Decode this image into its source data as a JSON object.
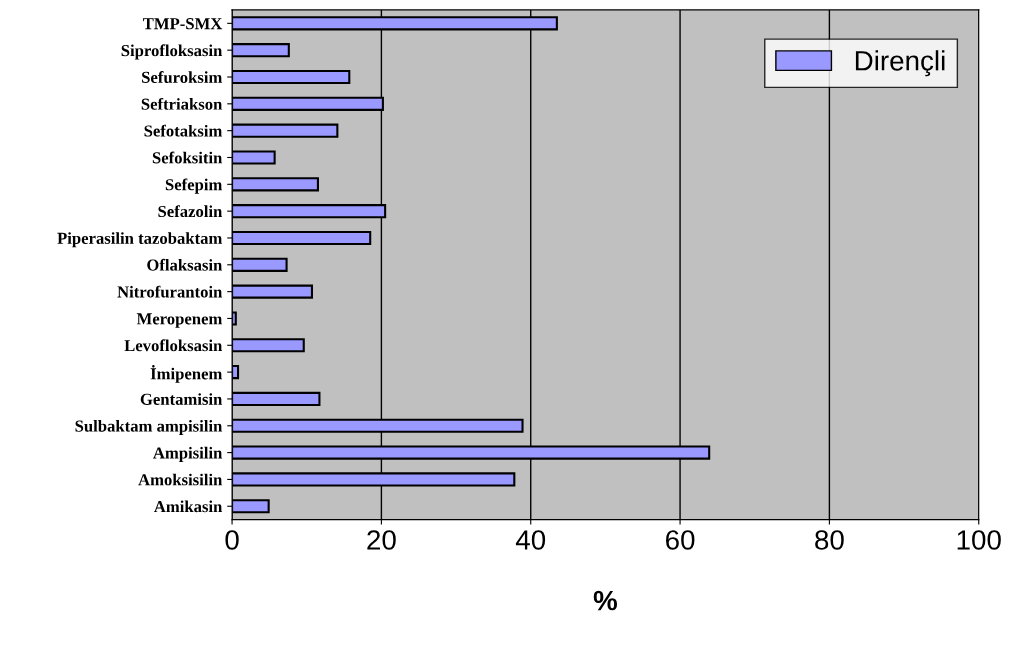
{
  "chart_data": {
    "type": "bar",
    "orientation": "horizontal",
    "xlabel": "%",
    "categories": [
      "TMP-SMX",
      "Siprofloksasin",
      "Sefuroksim",
      "Seftriakson",
      "Sefotaksim",
      "Sefoksitin",
      "Sefepim",
      "Sefazolin",
      "Piperasilin tazobaktam",
      "Oflaksasin",
      "Nitrofurantoin",
      "Meropenem",
      "Levofloksasin",
      "İmipenem",
      "Gentamisin",
      "Sulbaktam ampisilin",
      "Ampisilin",
      "Amoksisilin",
      "Amikasin"
    ],
    "series": [
      {
        "name": "Dirençli",
        "color": "#9999ff",
        "values": [
          43.5,
          7.6,
          15.7,
          20.2,
          14.1,
          5.7,
          11.5,
          20.5,
          18.5,
          7.3,
          10.7,
          0.5,
          9.6,
          0.8,
          11.7,
          38.9,
          63.9,
          37.8,
          4.9
        ]
      }
    ],
    "xlim": [
      0,
      100
    ],
    "xticks": [
      0,
      20,
      40,
      60,
      80,
      100
    ],
    "grid": "x",
    "legend": "top right"
  }
}
